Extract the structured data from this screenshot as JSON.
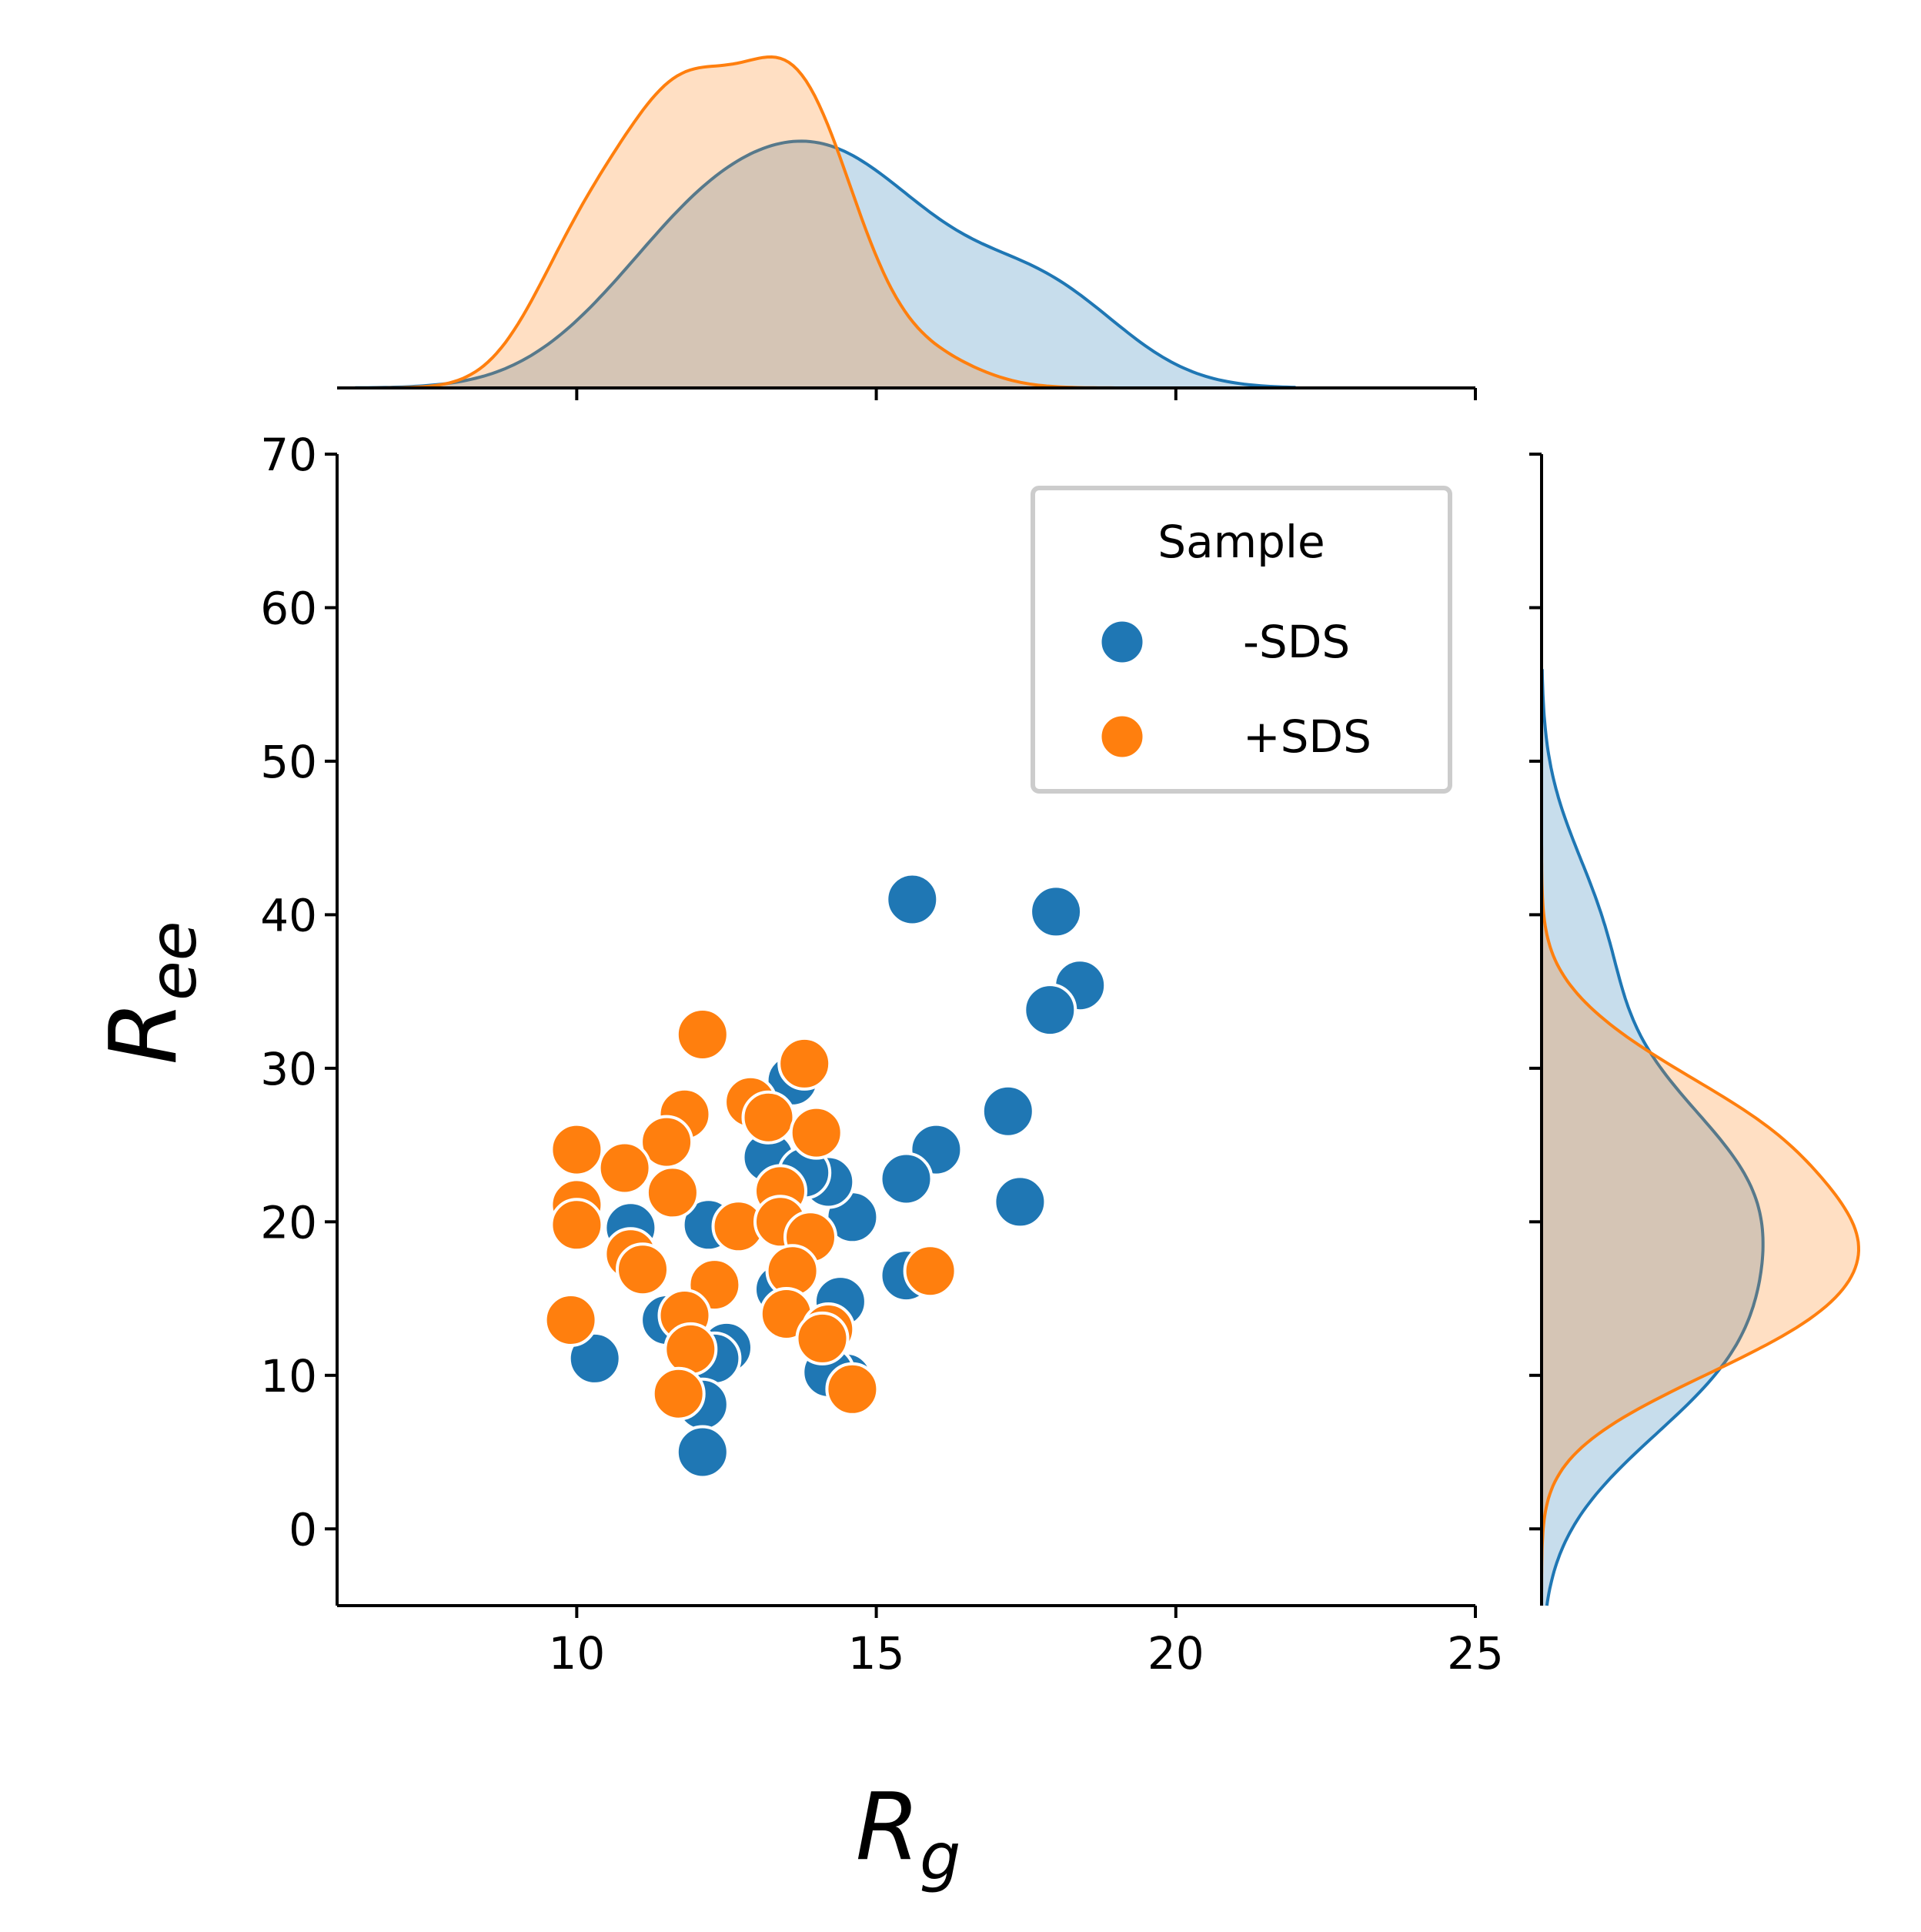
{
  "chart_data": {
    "type": "scatter",
    "title": "",
    "xlabel": {
      "main": "R",
      "sub": "g"
    },
    "ylabel": {
      "main": "R",
      "sub": "ee"
    },
    "xlim": [
      6,
      25
    ],
    "ylim": [
      -5,
      70
    ],
    "xticks": [
      10,
      15,
      20,
      25
    ],
    "yticks": [
      0,
      10,
      20,
      30,
      40,
      50,
      60,
      70
    ],
    "grid": false,
    "legend": {
      "title": "Sample",
      "position": "top-right",
      "entries": [
        "-SDS",
        "+SDS"
      ]
    },
    "marginals": {
      "top": "kde of x per series",
      "right": "kde of y per series"
    },
    "series": [
      {
        "name": "-SDS",
        "color": "#1f77b4",
        "points": [
          [
            15.6,
            41.0
          ],
          [
            18.0,
            40.2
          ],
          [
            18.4,
            35.4
          ],
          [
            17.9,
            33.8
          ],
          [
            17.2,
            27.2
          ],
          [
            16.0,
            24.7
          ],
          [
            15.5,
            22.8
          ],
          [
            17.4,
            21.3
          ],
          [
            14.6,
            20.3
          ],
          [
            14.2,
            22.6
          ],
          [
            13.2,
            24.2
          ],
          [
            13.6,
            29.2
          ],
          [
            12.2,
            19.8
          ],
          [
            10.9,
            19.6
          ],
          [
            10.3,
            11.1
          ],
          [
            12.5,
            11.8
          ],
          [
            12.3,
            11.1
          ],
          [
            12.1,
            8.1
          ],
          [
            12.1,
            5.0
          ],
          [
            14.4,
            14.8
          ],
          [
            15.5,
            16.5
          ],
          [
            14.5,
            9.8
          ],
          [
            14.2,
            10.2
          ],
          [
            13.8,
            23.2
          ],
          [
            13.4,
            15.6
          ],
          [
            11.5,
            13.6
          ]
        ]
      },
      {
        "name": "+SDS",
        "color": "#ff7f0e",
        "points": [
          [
            12.1,
            32.2
          ],
          [
            13.8,
            30.3
          ],
          [
            12.9,
            27.8
          ],
          [
            13.2,
            26.8
          ],
          [
            14.0,
            25.8
          ],
          [
            11.8,
            27.0
          ],
          [
            11.5,
            25.2
          ],
          [
            10.0,
            24.7
          ],
          [
            10.8,
            23.5
          ],
          [
            11.6,
            21.9
          ],
          [
            10.0,
            21.1
          ],
          [
            10.0,
            19.8
          ],
          [
            10.9,
            17.9
          ],
          [
            11.1,
            16.9
          ],
          [
            12.3,
            15.9
          ],
          [
            12.7,
            19.7
          ],
          [
            13.4,
            22.0
          ],
          [
            13.4,
            20.0
          ],
          [
            13.9,
            19.0
          ],
          [
            13.6,
            16.8
          ],
          [
            13.5,
            14.0
          ],
          [
            14.2,
            13.0
          ],
          [
            14.1,
            12.4
          ],
          [
            11.8,
            13.9
          ],
          [
            11.9,
            11.7
          ],
          [
            11.7,
            8.8
          ],
          [
            14.6,
            9.1
          ],
          [
            15.9,
            16.8
          ],
          [
            9.9,
            13.6
          ]
        ]
      }
    ]
  }
}
